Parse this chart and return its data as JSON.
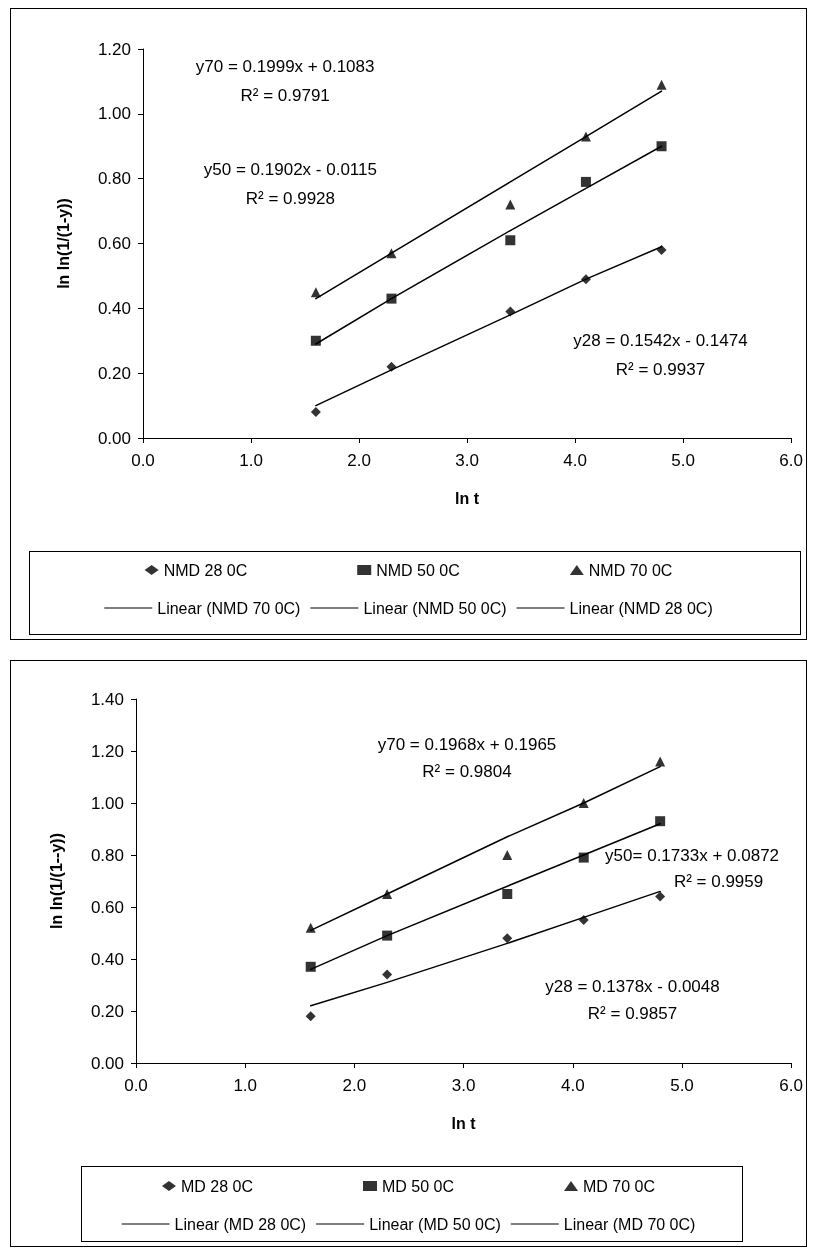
{
  "chart_data": [
    {
      "type": "scatter",
      "xlabel": "ln t",
      "ylabel": "ln ln(1/(1-y))",
      "x": [
        1.6,
        2.3,
        3.4,
        4.1,
        4.8
      ],
      "xlim": [
        0,
        6
      ],
      "xticks": [
        {
          "value": 0,
          "label": "0.0"
        },
        {
          "value": 1,
          "label": "1.0"
        },
        {
          "value": 2,
          "label": "2.0"
        },
        {
          "value": 3,
          "label": "3.0"
        },
        {
          "value": 4,
          "label": "4.0"
        },
        {
          "value": 5,
          "label": "5.0"
        },
        {
          "value": 6,
          "label": "6.0"
        }
      ],
      "ylim": [
        0,
        1.2
      ],
      "yticks": [
        {
          "value": 0,
          "label": "0.00"
        },
        {
          "value": 0.2,
          "label": "0.20"
        },
        {
          "value": 0.4,
          "label": "0.40"
        },
        {
          "value": 0.6,
          "label": "0.60"
        },
        {
          "value": 0.8,
          "label": "0.80"
        },
        {
          "value": 1,
          "label": "1.00"
        },
        {
          "value": 1.2,
          "label": "1.20"
        }
      ],
      "grid": false,
      "legend": "bottom",
      "series": [
        {
          "name": "NMD 28 0C",
          "color": "#000000",
          "marker": "diamond",
          "values": [
            0.08,
            0.22,
            0.39,
            0.49,
            0.58
          ]
        },
        {
          "name": "NMD 50 0C",
          "color": "#000000",
          "marker": "square",
          "values": [
            0.3,
            0.43,
            0.61,
            0.79,
            0.9
          ]
        },
        {
          "name": "NMD 70 0C",
          "color": "#000000",
          "marker": "triangle",
          "values": [
            0.45,
            0.57,
            0.72,
            0.93,
            1.09
          ]
        },
        {
          "name": "Linear (NMD 70 0C)",
          "type": "line",
          "color": "#000000",
          "marker": "none",
          "values": [
            0.43,
            0.57,
            0.79,
            0.93,
            1.07
          ]
        },
        {
          "name": "Linear (NMD 50 0C)",
          "type": "line",
          "color": "#000000",
          "marker": "none",
          "values": [
            0.29,
            0.43,
            0.64,
            0.77,
            0.9
          ]
        },
        {
          "name": "Linear (NMD 28 0C)",
          "type": "line",
          "color": "#000000",
          "marker": "none",
          "values": [
            0.1,
            0.21,
            0.38,
            0.49,
            0.59
          ]
        }
      ],
      "annotations": [
        "y70 = 0.1999x + 0.1083",
        "R² = 0.9791",
        "y50 = 0.1902x - 0.0115",
        "R² = 0.9928",
        "y28 = 0.1542x - 0.1474",
        "R² = 0.9937"
      ]
    },
    {
      "type": "scatter",
      "xlabel": "ln t",
      "ylabel": "ln ln(1/(1--y))",
      "x": [
        1.6,
        2.3,
        3.4,
        4.1,
        4.8
      ],
      "xlim": [
        0,
        6
      ],
      "xticks": [
        {
          "value": 0,
          "label": "0.0"
        },
        {
          "value": 1,
          "label": "1.0"
        },
        {
          "value": 2,
          "label": "2.0"
        },
        {
          "value": 3,
          "label": "3.0"
        },
        {
          "value": 4,
          "label": "4.0"
        },
        {
          "value": 5,
          "label": "5.0"
        },
        {
          "value": 6,
          "label": "6.0"
        }
      ],
      "ylim": [
        0,
        1.4
      ],
      "yticks": [
        {
          "value": 0,
          "label": "0.00"
        },
        {
          "value": 0.2,
          "label": "0.20"
        },
        {
          "value": 0.4,
          "label": "0.40"
        },
        {
          "value": 0.6,
          "label": "0.60"
        },
        {
          "value": 0.8,
          "label": "0.80"
        },
        {
          "value": 1,
          "label": "1.00"
        },
        {
          "value": 1.2,
          "label": "1.20"
        },
        {
          "value": 1.4,
          "label": "1.40"
        }
      ],
      "grid": false,
      "legend": "bottom",
      "series": [
        {
          "name": "MD 28 0C",
          "color": "#000000",
          "marker": "diamond",
          "values": [
            0.18,
            0.34,
            0.48,
            0.55,
            0.64
          ]
        },
        {
          "name": "MD 50 0C",
          "color": "#000000",
          "marker": "square",
          "values": [
            0.37,
            0.49,
            0.65,
            0.79,
            0.93
          ]
        },
        {
          "name": "MD 70 0C",
          "color": "#000000",
          "marker": "triangle",
          "values": [
            0.52,
            0.65,
            0.8,
            1.0,
            1.16
          ]
        },
        {
          "name": "Linear (MD 28 0C)",
          "type": "line",
          "color": "#000000",
          "marker": "none",
          "values": [
            0.22,
            0.31,
            0.46,
            0.56,
            0.66
          ]
        },
        {
          "name": "Linear (MD 50 0C)",
          "type": "line",
          "color": "#000000",
          "marker": "none",
          "values": [
            0.36,
            0.49,
            0.68,
            0.8,
            0.92
          ]
        },
        {
          "name": "Linear (MD 70 0C)",
          "type": "line",
          "color": "#000000",
          "marker": "none",
          "values": [
            0.51,
            0.65,
            0.87,
            1.0,
            1.14
          ]
        }
      ],
      "annotations": [
        "y70 = 0.1968x + 0.1965",
        "R² = 0.9804",
        "y50= 0.1733x + 0.0872",
        "R² = 0.9959",
        "y28 = 0.1378x - 0.0048",
        "R² = 0.9857"
      ]
    }
  ]
}
